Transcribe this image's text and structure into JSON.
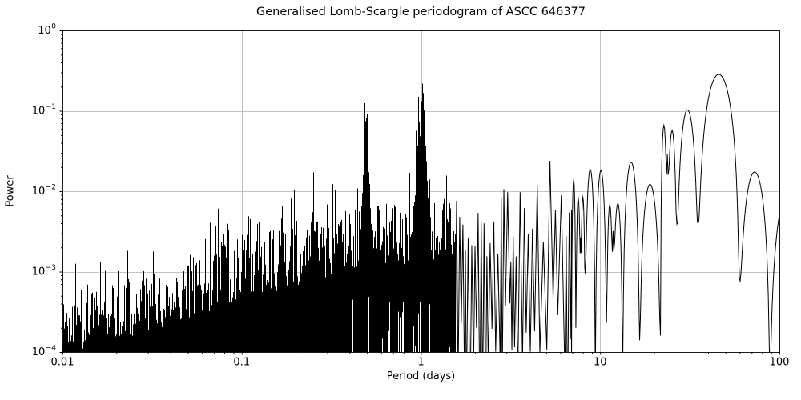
{
  "chart_data": {
    "type": "line",
    "title": "Generalised Lomb-Scargle periodogram of ASCC 646377",
    "xlabel": "Period (days)",
    "ylabel": "Power",
    "xscale": "log",
    "yscale": "log",
    "xlim": [
      0.01,
      100
    ],
    "ylim": [
      0.0001,
      1.0
    ],
    "xtick_labels": [
      "0.01",
      "0.1",
      "1",
      "10",
      "100"
    ],
    "ytick_exponents": [
      0,
      -1,
      -2,
      -3,
      -4
    ],
    "grid": true,
    "legend": false,
    "line_color": "#000000",
    "grid_color": "#b0b0b0",
    "background": "#ffffff",
    "seed": 1337,
    "main_peaks": [
      {
        "period": 45.8,
        "power": 0.284
      },
      {
        "period": 30.6,
        "power": 0.103
      },
      {
        "period": 22.6,
        "power": 0.066
      },
      {
        "period": 25.1,
        "power": 0.057
      },
      {
        "period": 14.9,
        "power": 0.023
      },
      {
        "period": 19.2,
        "power": 0.012
      },
      {
        "period": 10.1,
        "power": 0.018
      },
      {
        "period": 8.8,
        "power": 0.019
      },
      {
        "period": 69.8,
        "power": 0.017
      },
      {
        "period": 1.02,
        "power": 0.245
      },
      {
        "period": 0.967,
        "power": 0.21
      },
      {
        "period": 0.484,
        "power": 0.127
      },
      {
        "period": 0.5,
        "power": 0.112
      },
      {
        "period": 0.333,
        "power": 0.034
      },
      {
        "period": 0.25,
        "power": 0.026
      },
      {
        "period": 0.2,
        "power": 0.025
      }
    ],
    "alias_peaks": [
      [
        0.05,
        0.0026,
        0.008,
        2.3
      ],
      [
        0.0526,
        0.0024,
        0.008,
        2.3
      ],
      [
        0.0556,
        0.003,
        0.008,
        2.3
      ],
      [
        0.059,
        0.0028,
        0.008,
        2.3
      ],
      [
        0.0625,
        0.0032,
        0.008,
        2.3
      ],
      [
        0.0667,
        0.0042,
        0.008,
        2.3
      ],
      [
        0.0714,
        0.0038,
        0.008,
        2.3
      ],
      [
        0.0769,
        0.0045,
        0.008,
        2.3
      ],
      [
        0.0833,
        0.004,
        0.008,
        2.3
      ],
      [
        0.0909,
        0.0045,
        0.009,
        2.3
      ],
      [
        0.1,
        0.0055,
        0.009,
        2.3
      ],
      [
        0.111,
        0.006,
        0.009,
        2.3
      ],
      [
        0.125,
        0.0115,
        0.01,
        2.3
      ],
      [
        0.143,
        0.0103,
        0.01,
        2.3
      ],
      [
        0.167,
        0.016,
        0.011,
        2.3
      ],
      [
        0.2,
        0.025,
        0.012,
        2.3
      ],
      [
        0.25,
        0.026,
        0.012,
        2.3
      ],
      [
        0.285,
        0.012,
        0.01,
        2.3
      ],
      [
        0.333,
        0.034,
        0.013,
        2.3
      ],
      [
        0.43,
        0.0095,
        0.009,
        2.3
      ],
      [
        0.452,
        0.012,
        0.01,
        2.3
      ],
      [
        0.467,
        0.022,
        0.01,
        2.3
      ],
      [
        0.484,
        0.127,
        0.016,
        2.2
      ],
      [
        0.492,
        0.1,
        0.04,
        2.0
      ],
      [
        0.5,
        0.112,
        0.016,
        2.2
      ],
      [
        0.516,
        0.02,
        0.01,
        2.3
      ],
      [
        0.533,
        0.012,
        0.01,
        2.3
      ],
      [
        0.83,
        0.012,
        0.01,
        2.3
      ],
      [
        0.862,
        0.02,
        0.01,
        2.3
      ],
      [
        0.9,
        0.032,
        0.011,
        2.3
      ],
      [
        0.935,
        0.06,
        0.012,
        2.3
      ],
      [
        0.967,
        0.21,
        0.016,
        2.2
      ],
      [
        1.018,
        0.245,
        0.045,
        2.2
      ],
      [
        1.065,
        0.05,
        0.012,
        2.3
      ],
      [
        1.115,
        0.0168,
        0.01,
        2.3
      ],
      [
        1.16,
        0.0128,
        0.009,
        2.3
      ],
      [
        1.215,
        0.008,
        0.009,
        2.3
      ],
      [
        1.99,
        0.0088,
        0.01,
        2.3
      ],
      [
        2.6,
        0.007,
        0.009,
        2.3
      ],
      [
        3.05,
        0.0065,
        0.009,
        2.3
      ],
      [
        4.0,
        0.007,
        0.009,
        2.3
      ],
      [
        5.0,
        0.0075,
        0.009,
        2.3
      ],
      [
        6.0,
        0.011,
        0.009,
        2.3
      ],
      [
        6.55,
        0.0135,
        0.009,
        2.3
      ]
    ],
    "forest": {
      "range": [
        0.01,
        1.55
      ],
      "envelope": [
        [
          0.01,
          0.00022
        ],
        [
          0.0316,
          0.00045
        ],
        [
          0.1,
          0.0011
        ],
        [
          0.2,
          0.0016
        ],
        [
          0.316,
          0.0022
        ],
        [
          0.5,
          0.0027
        ],
        [
          1.0,
          0.0032
        ],
        [
          1.55,
          0.0032
        ]
      ],
      "jitter_dec": 0.4,
      "spike_prob": 0.1
    },
    "noise_band": {
      "range": [
        1.55,
        6.92
      ],
      "envelope": [
        [
          1.55,
          0.0032
        ],
        [
          2,
          0.0034
        ],
        [
          3,
          0.0036
        ],
        [
          4,
          0.0043
        ],
        [
          5,
          0.0052
        ],
        [
          6,
          0.0062
        ],
        [
          6.92,
          0.0075
        ]
      ],
      "jitter_dec": 0.45
    },
    "lobes": [
      [
        6.92,
        7.32,
        0.0138,
        5e-05,
        0.0002
      ],
      [
        7.32,
        7.78,
        0.0082,
        0.0002,
        0.0026
      ],
      [
        7.78,
        8.25,
        0.0084,
        0.0026,
        0.00095
      ],
      [
        8.25,
        9.4,
        0.0188,
        0.00095,
        5e-05
      ],
      [
        9.4,
        10.85,
        0.0182,
        5e-05,
        0.00023
      ],
      [
        10.85,
        11.8,
        0.0068,
        0.00023,
        0.0032
      ],
      [
        11.8,
        13.35,
        0.0071,
        0.0032,
        5e-05
      ],
      [
        13.35,
        16.6,
        0.023,
        5e-05,
        0.00014
      ],
      [
        16.6,
        21.7,
        0.0122,
        0.00014,
        0.00016
      ],
      [
        21.7,
        23.7,
        0.066,
        0.00016,
        0.029
      ],
      [
        23.7,
        26.8,
        0.057,
        0.029,
        0.0039
      ],
      [
        26.8,
        35.2,
        0.103,
        0.0039,
        0.004
      ],
      [
        35.2,
        59.8,
        0.284,
        0.004,
        0.00084
      ],
      [
        59.8,
        88.5,
        0.0174,
        0.00084,
        5e-05
      ],
      [
        88.5,
        152,
        0.012,
        5e-05,
        0.0001
      ]
    ]
  }
}
